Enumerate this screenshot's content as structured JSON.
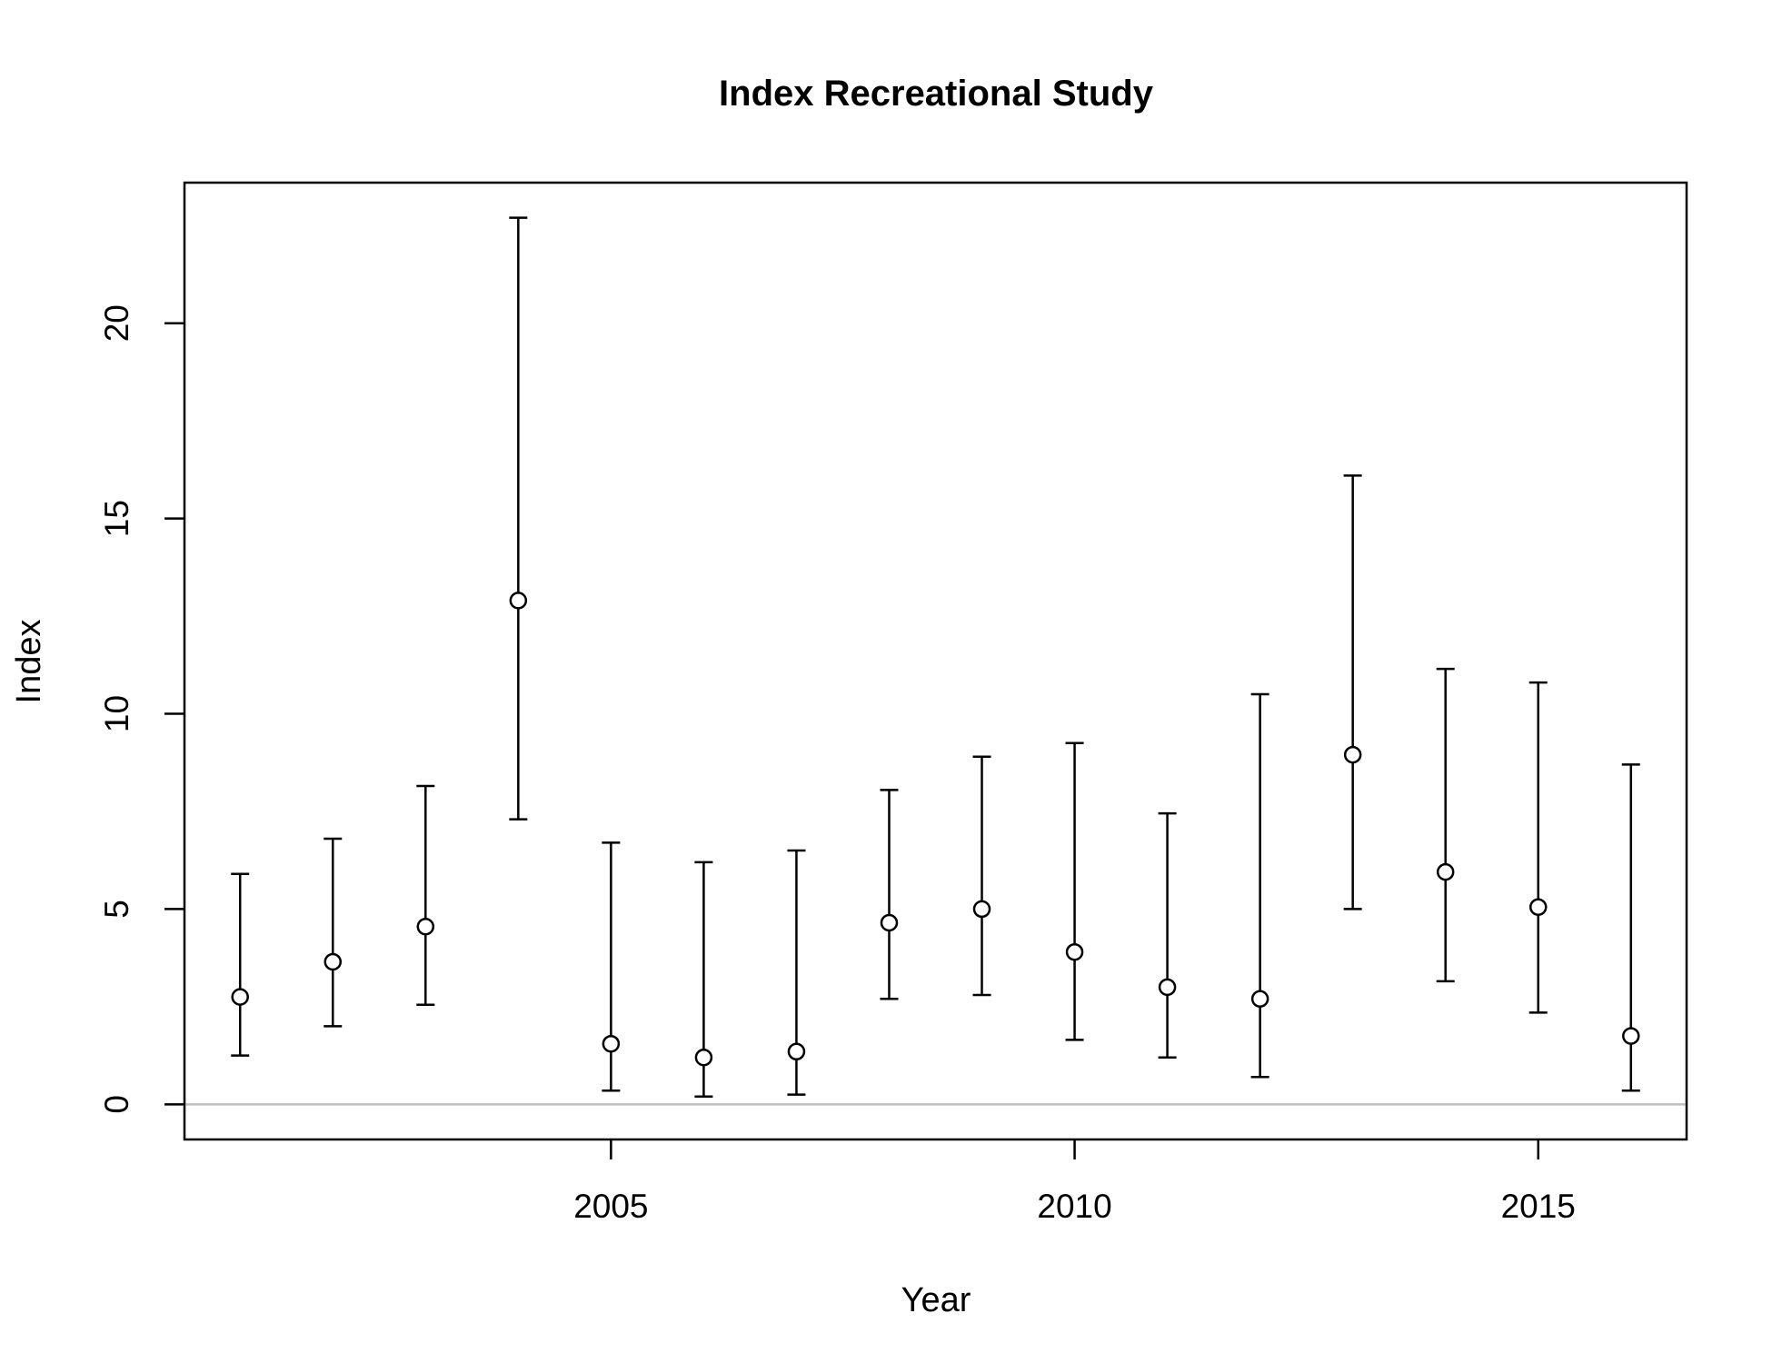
{
  "chart_data": {
    "type": "scatter",
    "title": "Index Recreational Study",
    "xlabel": "Year",
    "ylabel": "Index",
    "xlim": [
      2000.4,
      2016.6
    ],
    "ylim": [
      -0.9,
      23.6
    ],
    "xticks": [
      2005,
      2010,
      2015
    ],
    "xtick_labels": [
      "2005",
      "2010",
      "2015"
    ],
    "yticks": [
      0,
      5,
      10,
      15,
      20
    ],
    "ytick_labels": [
      "0",
      "5",
      "10",
      "15",
      "20"
    ],
    "reference_line": {
      "y": 0,
      "color": "#bebebe"
    },
    "grid": false,
    "legend": "none",
    "colors": {
      "points": "#000000",
      "errorbars": "#000000",
      "reference": "#bebebe"
    },
    "points": [
      {
        "x": 2001,
        "y": 2.75,
        "lower": 1.25,
        "upper": 5.9
      },
      {
        "x": 2002,
        "y": 3.65,
        "lower": 2.0,
        "upper": 6.8
      },
      {
        "x": 2003,
        "y": 4.55,
        "lower": 2.55,
        "upper": 8.15
      },
      {
        "x": 2004,
        "y": 12.9,
        "lower": 7.3,
        "upper": 22.7
      },
      {
        "x": 2005,
        "y": 1.55,
        "lower": 0.35,
        "upper": 6.7
      },
      {
        "x": 2006,
        "y": 1.2,
        "lower": 0.2,
        "upper": 6.2
      },
      {
        "x": 2007,
        "y": 1.35,
        "lower": 0.25,
        "upper": 6.5
      },
      {
        "x": 2008,
        "y": 4.65,
        "lower": 2.7,
        "upper": 8.05
      },
      {
        "x": 2009,
        "y": 5.0,
        "lower": 2.8,
        "upper": 8.9
      },
      {
        "x": 2010,
        "y": 3.9,
        "lower": 1.65,
        "upper": 9.25
      },
      {
        "x": 2011,
        "y": 3.0,
        "lower": 1.2,
        "upper": 7.45
      },
      {
        "x": 2012,
        "y": 2.7,
        "lower": 0.7,
        "upper": 10.5
      },
      {
        "x": 2013,
        "y": 8.95,
        "lower": 5.0,
        "upper": 16.1
      },
      {
        "x": 2014,
        "y": 5.95,
        "lower": 3.15,
        "upper": 11.15
      },
      {
        "x": 2015,
        "y": 5.05,
        "lower": 2.35,
        "upper": 10.8
      },
      {
        "x": 2016,
        "y": 1.75,
        "lower": 0.35,
        "upper": 8.7
      }
    ]
  }
}
